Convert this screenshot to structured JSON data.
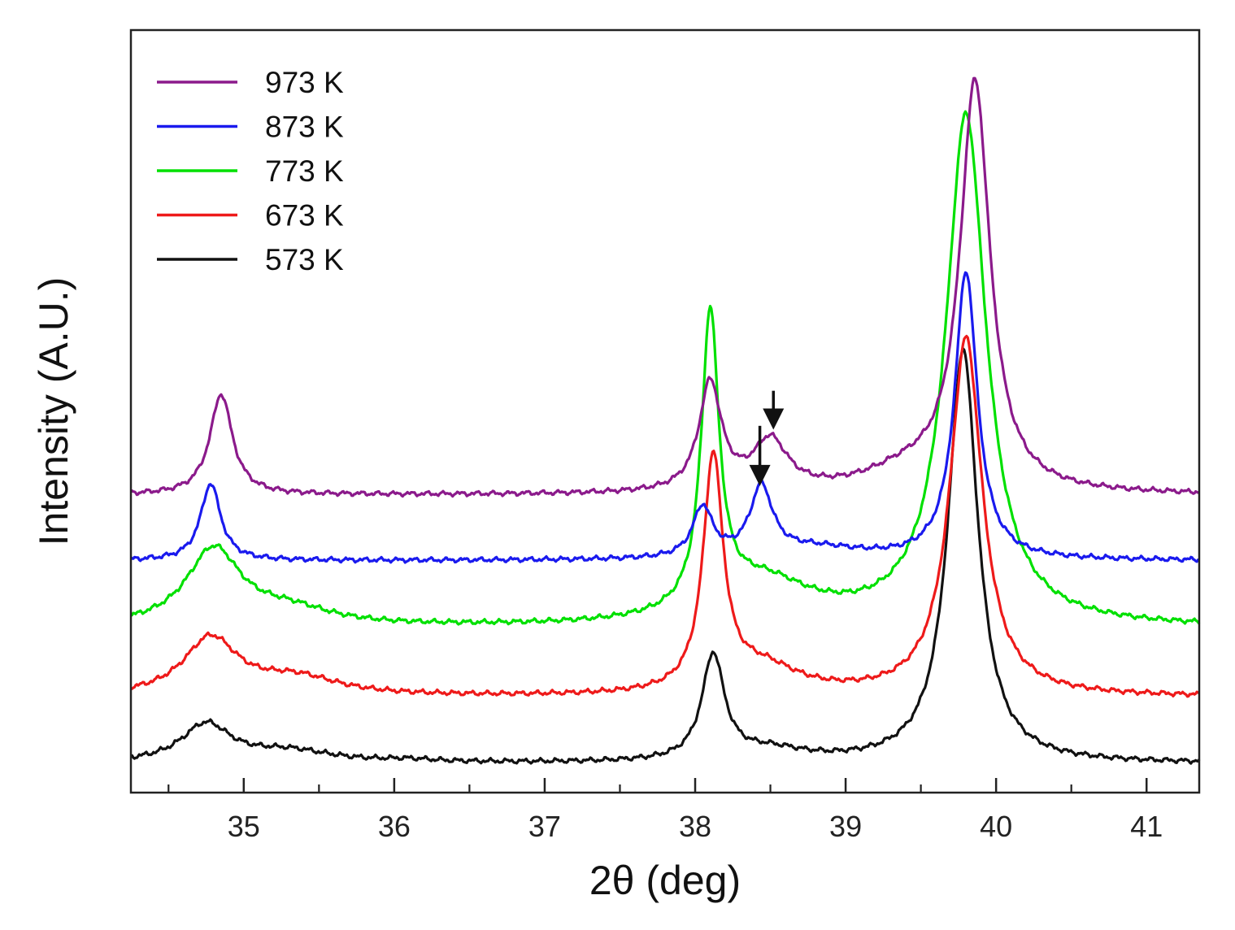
{
  "chart_data": {
    "type": "line",
    "title": "",
    "xlabel": "2θ (deg)",
    "ylabel": "Intensity (A.U.)",
    "xlim": [
      34.25,
      41.35
    ],
    "ylim": [
      0,
      100
    ],
    "x_ticks": [
      35,
      36,
      37,
      38,
      39,
      40,
      41
    ],
    "x_minor_ticks": [
      34.5,
      35.5,
      36.5,
      37.5,
      38.5,
      39.5,
      40.5
    ],
    "y_ticks_shown": false,
    "grid": false,
    "legend_position": "top-left",
    "series": [
      {
        "name": "973 K",
        "color": "#8b1a8b",
        "baseline": 39,
        "peaks": [
          {
            "x": 34.85,
            "height": 13.2,
            "width": 0.09
          },
          {
            "x": 38.1,
            "height": 14.2,
            "width": 0.09
          },
          {
            "x": 38.5,
            "height": 6.5,
            "width": 0.14
          },
          {
            "x": 39.86,
            "height": 53.6,
            "width": 0.12
          },
          {
            "x": 39.4,
            "height": 2.5,
            "width": 0.35
          }
        ]
      },
      {
        "name": "873 K",
        "color": "#1a1aee",
        "baseline": 30.4,
        "peaks": [
          {
            "x": 34.78,
            "height": 10.1,
            "width": 0.08
          },
          {
            "x": 38.05,
            "height": 6.6,
            "width": 0.08
          },
          {
            "x": 38.44,
            "height": 9.0,
            "width": 0.09
          },
          {
            "x": 39.8,
            "height": 37.8,
            "width": 0.09
          },
          {
            "x": 38.8,
            "height": 1.5,
            "width": 0.4
          }
        ]
      },
      {
        "name": "773 K",
        "color": "#00e000",
        "baseline": 21.6,
        "peaks": [
          {
            "x": 34.8,
            "height": 10.0,
            "width": 0.22
          },
          {
            "x": 35.3,
            "height": 2.0,
            "width": 0.35
          },
          {
            "x": 38.1,
            "height": 38.5,
            "width": 0.07
          },
          {
            "x": 38.45,
            "height": 5.5,
            "width": 0.4
          },
          {
            "x": 39.8,
            "height": 67.0,
            "width": 0.16
          }
        ]
      },
      {
        "name": "673 K",
        "color": "#ee1a1a",
        "baseline": 12.5,
        "peaks": [
          {
            "x": 34.78,
            "height": 7.5,
            "width": 0.22
          },
          {
            "x": 35.35,
            "height": 2.3,
            "width": 0.35
          },
          {
            "x": 38.12,
            "height": 30.5,
            "width": 0.08
          },
          {
            "x": 38.45,
            "height": 3.5,
            "width": 0.3
          },
          {
            "x": 39.8,
            "height": 47.0,
            "width": 0.13
          }
        ]
      },
      {
        "name": "573 K",
        "color": "#111111",
        "baseline": 3.8,
        "peaks": [
          {
            "x": 34.75,
            "height": 5.0,
            "width": 0.2
          },
          {
            "x": 35.3,
            "height": 1.5,
            "width": 0.35
          },
          {
            "x": 36.1,
            "height": 0.3,
            "width": 0.2
          },
          {
            "x": 38.12,
            "height": 13.8,
            "width": 0.09
          },
          {
            "x": 38.5,
            "height": 1.5,
            "width": 0.3
          },
          {
            "x": 39.78,
            "height": 54.3,
            "width": 0.12
          }
        ]
      }
    ],
    "annotations": [
      {
        "type": "arrow-down",
        "x": 38.52,
        "y_from": 52.7,
        "y_to": 47.6,
        "points_to_series": "973 K"
      },
      {
        "type": "arrow-down",
        "x": 38.43,
        "y_from": 48.1,
        "y_to": 40.2,
        "points_to_series": "873 K"
      }
    ]
  }
}
